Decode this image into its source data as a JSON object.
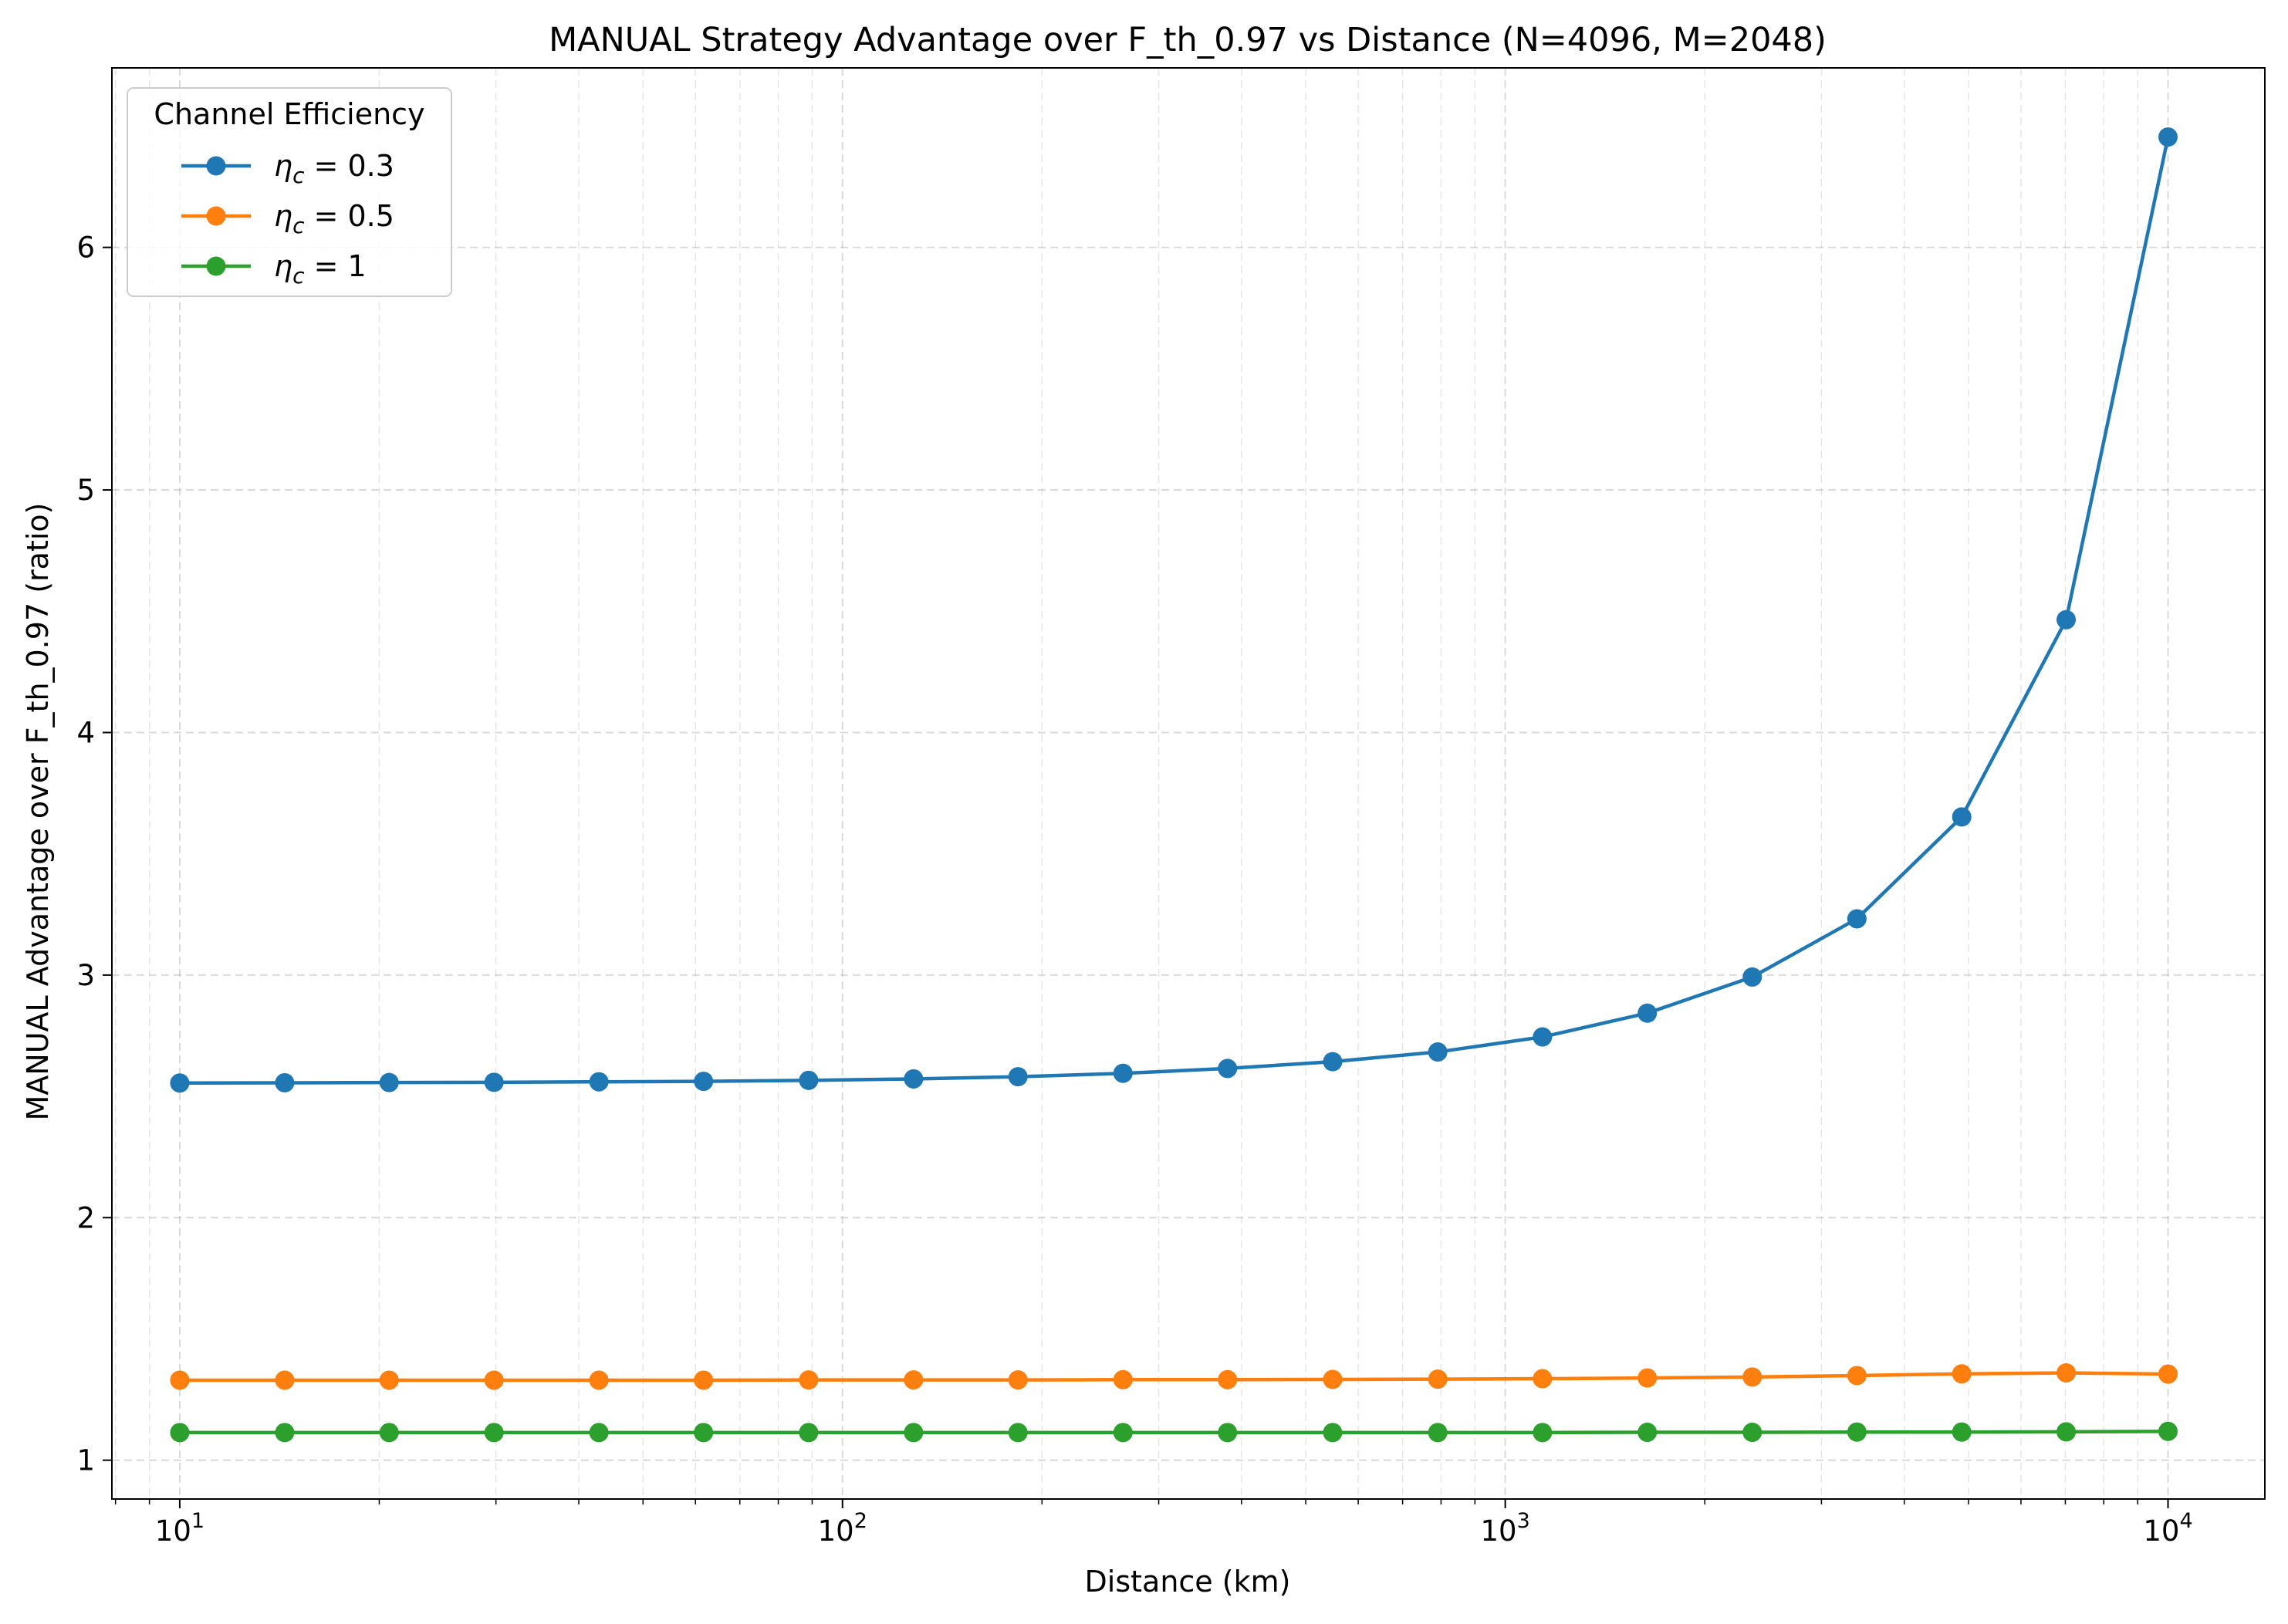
{
  "chart_data": {
    "type": "line",
    "title": "MANUAL Strategy Advantage over F_th_0.97 vs Distance (N=4096, M=2048)",
    "xlabel": "Distance (km)",
    "ylabel": "MANUAL Advantage over F_th_0.97 (ratio)",
    "xscale": "log",
    "xlim": [
      7.9,
      14000
    ],
    "ylim": [
      0.84,
      6.74
    ],
    "x_ticks": [
      {
        "value": 10,
        "mantissa": "10",
        "exponent": "1"
      },
      {
        "value": 100,
        "mantissa": "10",
        "exponent": "2"
      },
      {
        "value": 1000,
        "mantissa": "10",
        "exponent": "3"
      },
      {
        "value": 10000,
        "mantissa": "10",
        "exponent": "4"
      }
    ],
    "y_ticks": [
      1,
      2,
      3,
      4,
      5,
      6
    ],
    "y_tick_labels": [
      "1",
      "2",
      "3",
      "4",
      "5",
      "6"
    ],
    "grid": true,
    "legend_title": "Channel Efficiency",
    "legend_position": "top-left",
    "x": [
      10,
      14.4,
      20.7,
      29.8,
      42.9,
      61.7,
      88.9,
      128,
      184,
      265,
      381,
      549,
      791,
      1138,
      1638,
      2359,
      3393,
      4884,
      7020,
      10000
    ],
    "series": [
      {
        "name": "η_c = 0.3",
        "label_symbol": "η",
        "label_sub": "c",
        "label_rest": " = 0.3",
        "color": "#1f77b4",
        "values": [
          2.555,
          2.556,
          2.557,
          2.558,
          2.56,
          2.562,
          2.566,
          2.572,
          2.581,
          2.595,
          2.615,
          2.643,
          2.683,
          2.745,
          2.843,
          2.992,
          3.232,
          3.652,
          4.465,
          6.455
        ]
      },
      {
        "name": "η_c = 0.5",
        "label_symbol": "η",
        "label_sub": "c",
        "label_rest": " = 0.5",
        "color": "#ff7f0e",
        "values": [
          1.33,
          1.33,
          1.33,
          1.33,
          1.33,
          1.33,
          1.331,
          1.331,
          1.331,
          1.332,
          1.332,
          1.333,
          1.334,
          1.336,
          1.339,
          1.343,
          1.349,
          1.356,
          1.36,
          1.355
        ]
      },
      {
        "name": "η_c = 1",
        "label_symbol": "η",
        "label_sub": "c",
        "label_rest": " = 1",
        "color": "#2ca02c",
        "values": [
          1.114,
          1.114,
          1.114,
          1.114,
          1.114,
          1.114,
          1.114,
          1.114,
          1.114,
          1.114,
          1.114,
          1.114,
          1.114,
          1.114,
          1.115,
          1.115,
          1.116,
          1.116,
          1.117,
          1.119
        ]
      }
    ]
  }
}
